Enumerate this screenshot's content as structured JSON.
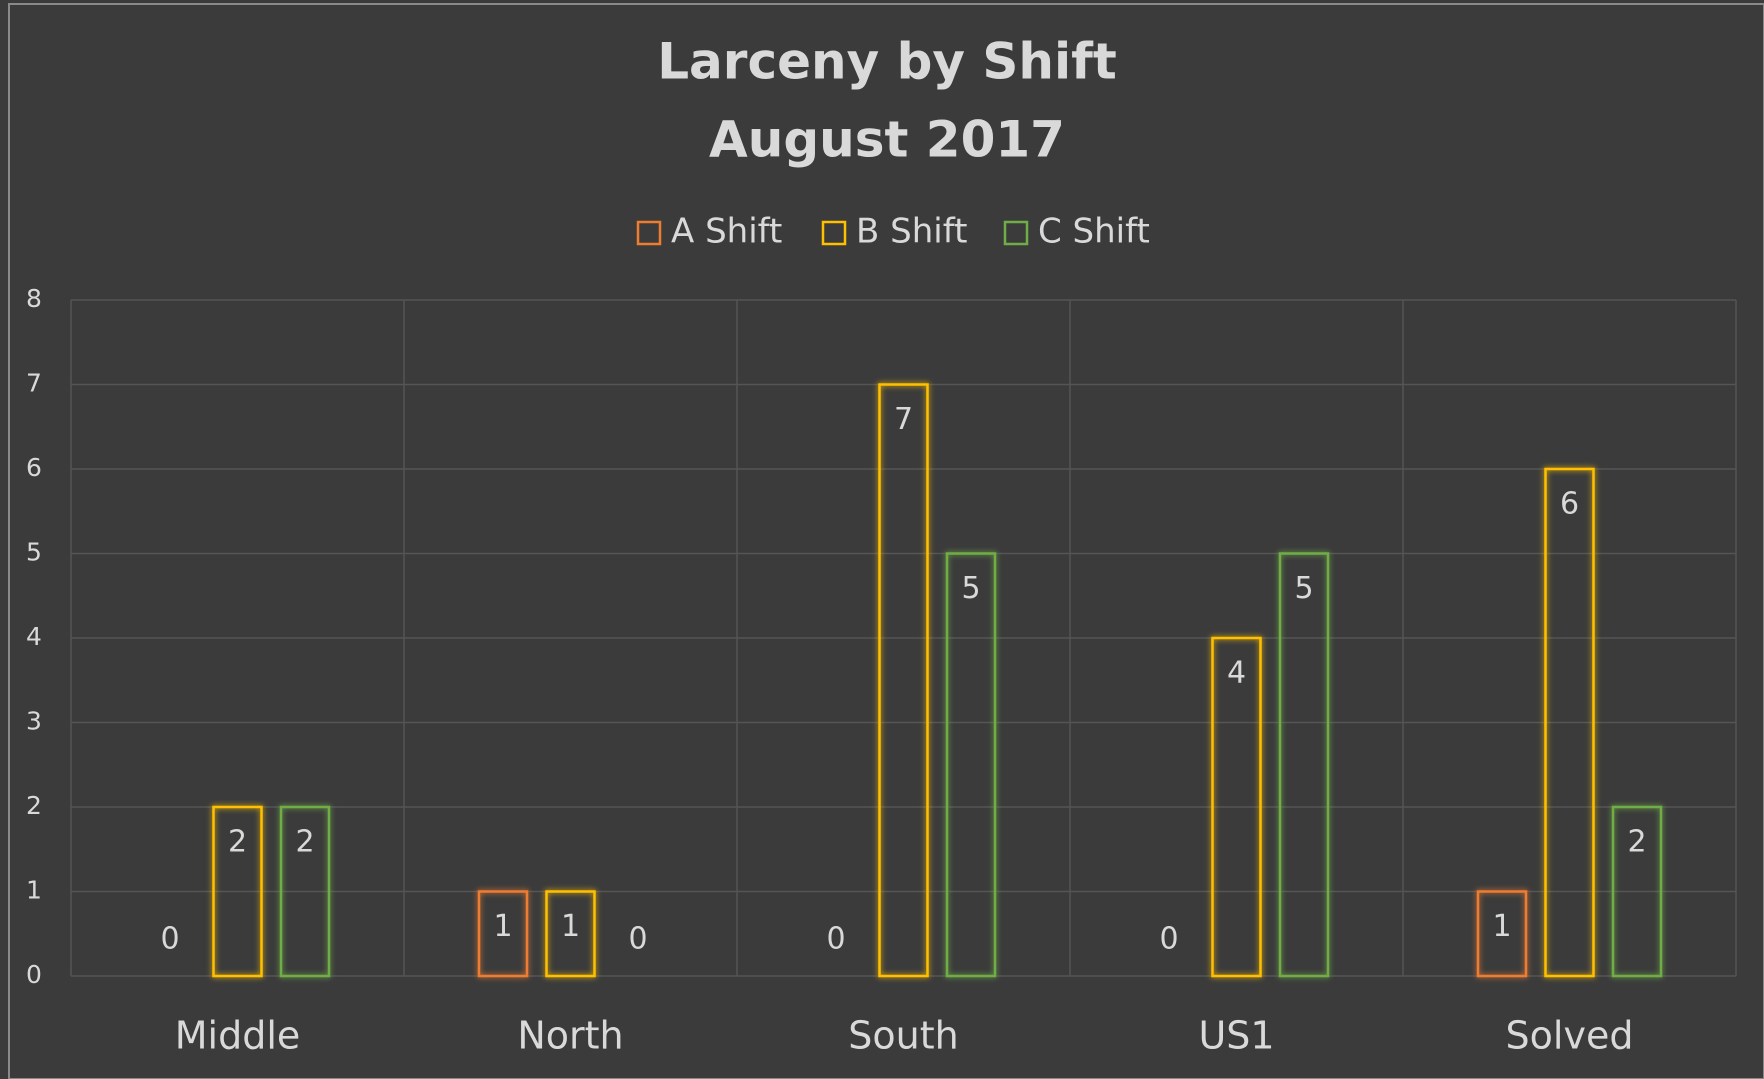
{
  "chart_data": {
    "type": "bar",
    "title": "Larceny by Shift",
    "subtitle": "August 2017",
    "categories": [
      "Middle",
      "North",
      "South",
      "US1",
      "Solved"
    ],
    "series": [
      {
        "name": "A Shift",
        "color": "#ed7d31",
        "values": [
          0,
          1,
          0,
          0,
          1
        ]
      },
      {
        "name": "B Shift",
        "color": "#ffc000",
        "values": [
          2,
          1,
          7,
          4,
          6
        ]
      },
      {
        "name": "C Shift",
        "color": "#70ad47",
        "values": [
          2,
          0,
          5,
          5,
          2
        ]
      }
    ],
    "ylim": [
      0,
      8
    ],
    "yticks": [
      0,
      1,
      2,
      3,
      4,
      5,
      6,
      7,
      8
    ],
    "grid": true,
    "legend": "top"
  }
}
